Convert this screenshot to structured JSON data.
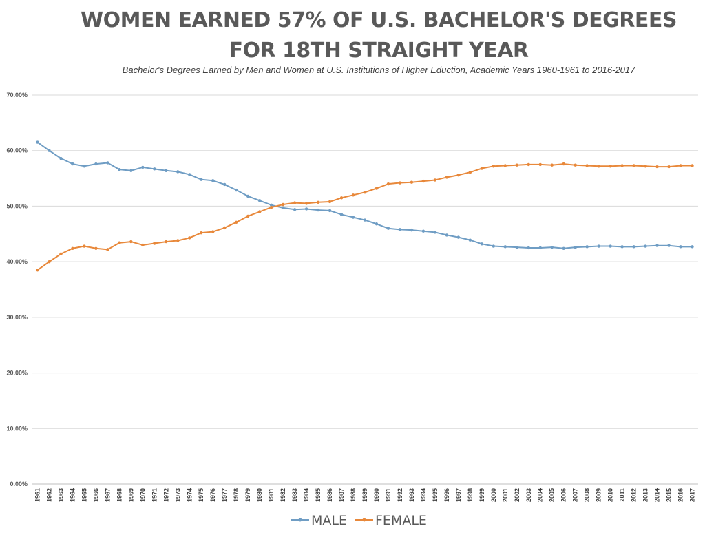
{
  "title": {
    "line1": "WOMEN EARNED 57% OF U.S. BACHELOR'S DEGREES",
    "line2": "FOR 18TH STRAIGHT YEAR"
  },
  "subtitle": "Bachelor's Degrees Earned by Men and Women at U.S. Institutions of Higher Eduction, Academic Years 1960-1961 to 2016-2017",
  "colors": {
    "male": "#6f9dc4",
    "female": "#e8883a",
    "grid": "#d9d9d9",
    "axis": "#bfbfbf"
  },
  "chart_data": {
    "type": "line",
    "title": "WOMEN EARNED 57% OF U.S. BACHELOR'S DEGREES FOR 18TH STRAIGHT YEAR",
    "subtitle": "Bachelor's Degrees Earned by Men and Women at U.S. Institutions of Higher Eduction, Academic Years 1960-1961 to 2016-2017",
    "xlabel": "",
    "ylabel": "",
    "ylim": [
      0,
      0.7
    ],
    "yticks": [
      0,
      0.1,
      0.2,
      0.3,
      0.4,
      0.5,
      0.6,
      0.7
    ],
    "ytick_labels": [
      "0.00%",
      "10.00%",
      "20.00%",
      "30.00%",
      "40.00%",
      "50.00%",
      "60.00%",
      "70.00%"
    ],
    "grid": true,
    "legend_position": "bottom",
    "x": [
      "1961",
      "1962",
      "1963",
      "1964",
      "1965",
      "1966",
      "1967",
      "1968",
      "1969",
      "1970",
      "1971",
      "1972",
      "1973",
      "1974",
      "1975",
      "1976",
      "1977",
      "1978",
      "1979",
      "1980",
      "1981",
      "1982",
      "1983",
      "1984",
      "1985",
      "1986",
      "1987",
      "1988",
      "1989",
      "1990",
      "1991",
      "1992",
      "1993",
      "1994",
      "1995",
      "1996",
      "1997",
      "1998",
      "1999",
      "2000",
      "2001",
      "2002",
      "2003",
      "2004",
      "2005",
      "2006",
      "2007",
      "2008",
      "2009",
      "2010",
      "2011",
      "2012",
      "2013",
      "2014",
      "2015",
      "2016",
      "2017"
    ],
    "series": [
      {
        "name": "MALE",
        "color": "#6f9dc4",
        "values": [
          0.615,
          0.6,
          0.586,
          0.576,
          0.572,
          0.576,
          0.578,
          0.566,
          0.564,
          0.57,
          0.567,
          0.564,
          0.562,
          0.557,
          0.548,
          0.546,
          0.539,
          0.529,
          0.518,
          0.51,
          0.502,
          0.497,
          0.494,
          0.495,
          0.493,
          0.492,
          0.485,
          0.48,
          0.475,
          0.468,
          0.46,
          0.458,
          0.457,
          0.455,
          0.453,
          0.448,
          0.444,
          0.439,
          0.432,
          0.428,
          0.427,
          0.426,
          0.425,
          0.425,
          0.426,
          0.424,
          0.426,
          0.427,
          0.428,
          0.428,
          0.427,
          0.427,
          0.428,
          0.429,
          0.429,
          0.427,
          0.427
        ]
      },
      {
        "name": "FEMALE",
        "color": "#e8883a",
        "values": [
          0.385,
          0.4,
          0.414,
          0.424,
          0.428,
          0.424,
          0.422,
          0.434,
          0.436,
          0.43,
          0.433,
          0.436,
          0.438,
          0.443,
          0.452,
          0.454,
          0.461,
          0.471,
          0.482,
          0.49,
          0.498,
          0.503,
          0.506,
          0.505,
          0.507,
          0.508,
          0.515,
          0.52,
          0.525,
          0.532,
          0.54,
          0.542,
          0.543,
          0.545,
          0.547,
          0.552,
          0.556,
          0.561,
          0.568,
          0.572,
          0.573,
          0.574,
          0.575,
          0.575,
          0.574,
          0.576,
          0.574,
          0.573,
          0.572,
          0.572,
          0.573,
          0.573,
          0.572,
          0.571,
          0.571,
          0.573,
          0.573
        ]
      }
    ]
  }
}
